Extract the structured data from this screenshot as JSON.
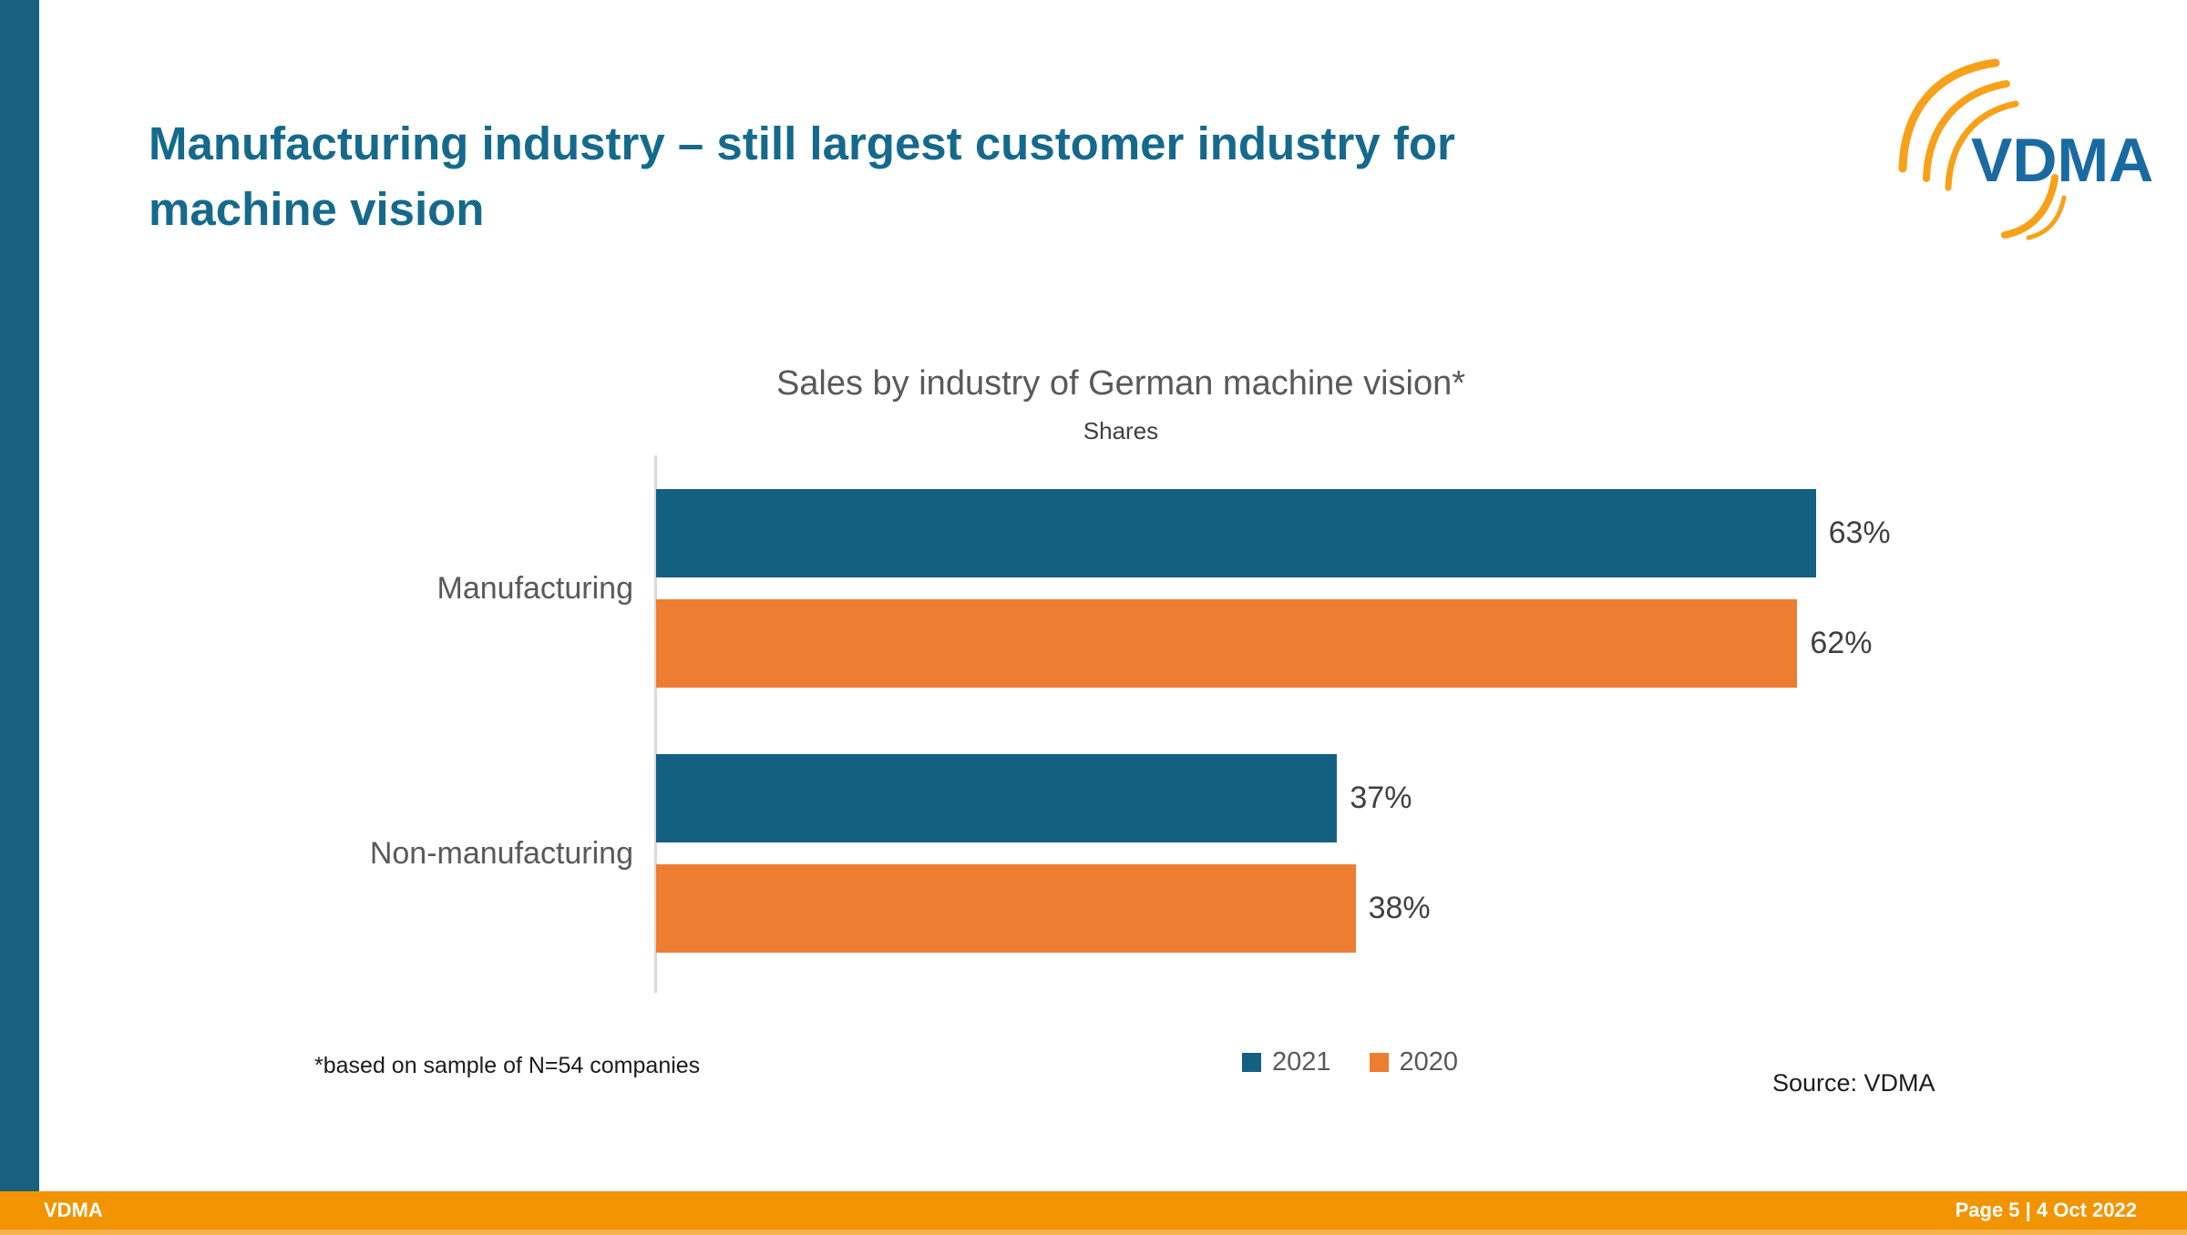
{
  "slide": {
    "title_line1": "Manufacturing industry – still largest customer industry for",
    "title_line2": "machine vision",
    "title_color": "#156a8c",
    "accent_color": "#17617f"
  },
  "logo": {
    "text": "VDMA",
    "text_color": "#1a6aa2",
    "arc_color": "#f7a11a"
  },
  "chart_data": {
    "type": "bar",
    "orientation": "horizontal",
    "title": "Sales by industry of German machine vision*",
    "subtitle": "Shares",
    "categories": [
      "Manufacturing",
      "Non-manufacturing"
    ],
    "series": [
      {
        "name": "2021",
        "color": "#136083",
        "values": [
          63,
          37
        ]
      },
      {
        "name": "2020",
        "color": "#ed7d31",
        "values": [
          62,
          38
        ]
      }
    ],
    "value_suffix": "%",
    "xlim": [
      0,
      100
    ],
    "grid": false,
    "legend_position": "bottom"
  },
  "footnote": "*based on sample of N=54 companies",
  "source": "Source: VDMA",
  "footer": {
    "left_label": "VDMA",
    "right_label": "Page 5 | 4 Oct 2022",
    "bar_color": "#f29400"
  }
}
